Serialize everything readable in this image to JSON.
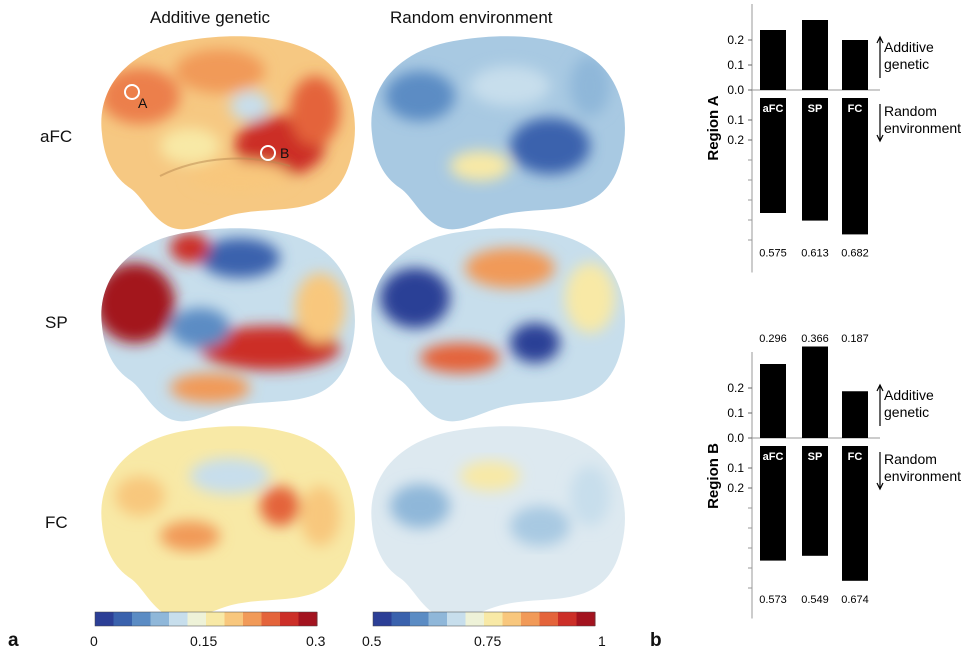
{
  "panel_a": {
    "letter": "a",
    "column_headers": [
      "Additive genetic",
      "Random environment"
    ],
    "row_labels": [
      "aFC",
      "SP",
      "FC"
    ],
    "markers": [
      "A",
      "B"
    ],
    "colorbar_genetic": {
      "ticks": [
        "0",
        "0.15",
        "0.3"
      ]
    },
    "colorbar_environment": {
      "ticks": [
        "0.5",
        "0.75",
        "1"
      ]
    },
    "colormap": [
      "#2c3f96",
      "#3a62ad",
      "#5b8cc4",
      "#8fb7d9",
      "#c7deec",
      "#eef2d8",
      "#f8e9a6",
      "#f8c77d",
      "#f19a58",
      "#e4643b",
      "#cc2f28",
      "#a3131f"
    ]
  },
  "panel_b": {
    "letter": "b",
    "regions": [
      {
        "title": "Region A",
        "top_values": [
          "",
          "",
          ""
        ],
        "bottom_values": [
          "0.575",
          "0.613",
          "0.682"
        ],
        "bar_labels": [
          "aFC",
          "SP",
          "FC"
        ],
        "genetic_values": [
          0.24,
          0.28,
          0.2
        ],
        "environment_values": [
          0.575,
          0.613,
          0.682
        ],
        "axis_ticks_up": [
          "0.2",
          "0.1",
          "0.0"
        ],
        "axis_ticks_down": [
          "0.1",
          "0.2"
        ],
        "annotation_up": [
          "Additive",
          "genetic"
        ],
        "annotation_down": [
          "Random",
          "environment"
        ]
      },
      {
        "title": "Region B",
        "top_values": [
          "0.296",
          "0.366",
          "0.187"
        ],
        "bottom_values": [
          "0.573",
          "0.549",
          "0.674"
        ],
        "bar_labels": [
          "aFC",
          "SP",
          "FC"
        ],
        "genetic_values": [
          0.296,
          0.366,
          0.187
        ],
        "environment_values": [
          0.573,
          0.549,
          0.674
        ],
        "axis_ticks_up": [
          "0.2",
          "0.1",
          "0.0"
        ],
        "axis_ticks_down": [
          "0.1",
          "0.2"
        ],
        "annotation_up": [
          "Additive",
          "genetic"
        ],
        "annotation_down": [
          "Random",
          "environment"
        ]
      }
    ]
  }
}
